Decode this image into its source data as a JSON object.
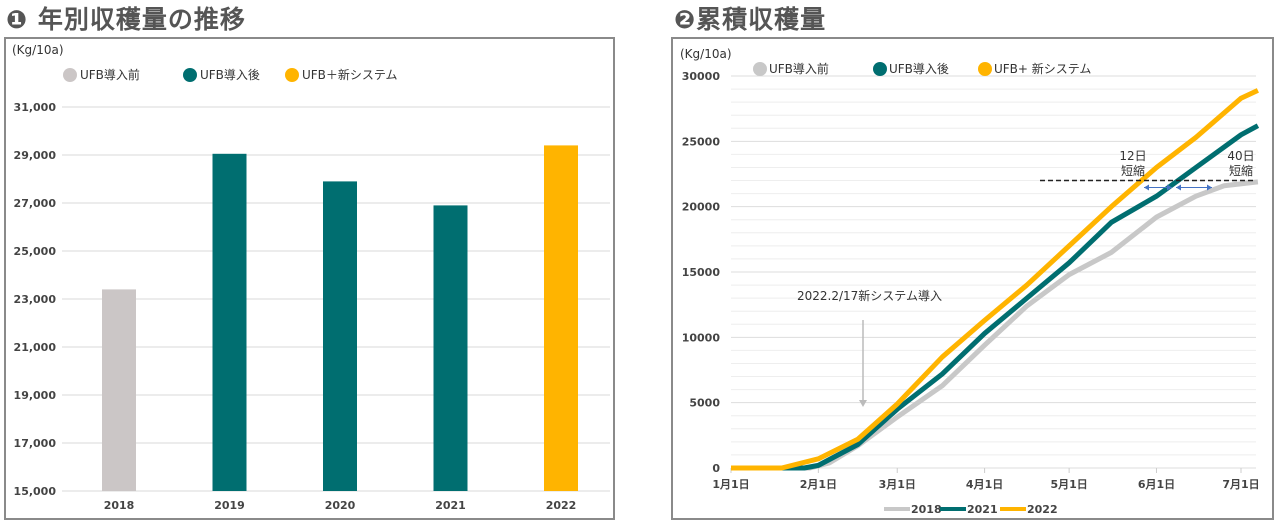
{
  "titles": {
    "left": "❶ 年別収穫量の推移",
    "right": "❷累積収穫量"
  },
  "colors": {
    "pre": "#cbc6c6",
    "post": "#006e70",
    "new": "#ffb400",
    "line2018": "#c8c8c8",
    "grid": "#d9d9d9",
    "arrow": "#4472c4"
  },
  "chart_data": [
    {
      "type": "bar",
      "unit_label": "(Kg/10a)",
      "legend": [
        {
          "label": "UFB導入前",
          "color": "#cbc6c6"
        },
        {
          "label": "UFB導入後",
          "color": "#006e70"
        },
        {
          "label": "UFB＋新システム",
          "color": "#ffb400"
        }
      ],
      "legend_position": "top",
      "categories": [
        "2018",
        "2019",
        "2020",
        "2021",
        "2022"
      ],
      "values": [
        23400,
        29050,
        27900,
        26900,
        29400
      ],
      "bar_colors": [
        "#cbc6c6",
        "#006e70",
        "#006e70",
        "#006e70",
        "#ffb400"
      ],
      "ylim": [
        15000,
        31000
      ],
      "yticks": [
        "15,000",
        "17,000",
        "19,000",
        "21,000",
        "23,000",
        "25,000",
        "27,000",
        "29,000",
        "31,000"
      ],
      "grid": true
    },
    {
      "type": "line",
      "unit_label": "(Kg/10a)",
      "legend_top": [
        {
          "label": "UFB導入前",
          "color": "#c8c8c8"
        },
        {
          "label": "UFB導入後",
          "color": "#006e70"
        },
        {
          "label": "UFB+ 新システム",
          "color": "#ffb400"
        }
      ],
      "legend_bottom": [
        "2018",
        "2021",
        "2022"
      ],
      "xticks": [
        "1月1日",
        "2月1日",
        "3月1日",
        "4月1日",
        "5月1日",
        "6月1日",
        "7月1日"
      ],
      "xtick_days": [
        0,
        31,
        59,
        90,
        120,
        151,
        181
      ],
      "xlim_days": [
        0,
        187
      ],
      "ylim": [
        0,
        30000
      ],
      "yticks": [
        "0",
        "5000",
        "10000",
        "15000",
        "20000",
        "25000",
        "30000"
      ],
      "grid": true,
      "series": [
        {
          "name": "2018",
          "color": "#c8c8c8",
          "points": [
            [
              0,
              0
            ],
            [
              28,
              0
            ],
            [
              35,
              400
            ],
            [
              45,
              1700
            ],
            [
              59,
              3900
            ],
            [
              75,
              6300
            ],
            [
              90,
              9400
            ],
            [
              105,
              12400
            ],
            [
              120,
              14800
            ],
            [
              135,
              16500
            ],
            [
              151,
              19200
            ],
            [
              165,
              20800
            ],
            [
              175,
              21600
            ],
            [
              187,
              21900
            ]
          ]
        },
        {
          "name": "2021",
          "color": "#006e70",
          "points": [
            [
              0,
              0
            ],
            [
              26,
              0
            ],
            [
              31,
              200
            ],
            [
              45,
              1800
            ],
            [
              59,
              4500
            ],
            [
              75,
              7200
            ],
            [
              90,
              10300
            ],
            [
              105,
              13000
            ],
            [
              120,
              15700
            ],
            [
              135,
              18800
            ],
            [
              151,
              20800
            ],
            [
              165,
              23000
            ],
            [
              181,
              25500
            ],
            [
              187,
              26200
            ]
          ]
        },
        {
          "name": "2022",
          "color": "#ffb400",
          "points": [
            [
              0,
              0
            ],
            [
              18,
              0
            ],
            [
              31,
              700
            ],
            [
              45,
              2200
            ],
            [
              59,
              4900
            ],
            [
              75,
              8500
            ],
            [
              90,
              11300
            ],
            [
              105,
              14000
            ],
            [
              120,
              17000
            ],
            [
              135,
              20000
            ],
            [
              151,
              23000
            ],
            [
              165,
              25300
            ],
            [
              181,
              28300
            ],
            [
              187,
              28900
            ]
          ]
        }
      ],
      "annotations": {
        "intro": "2022.2/17新システム導入",
        "target_value": 22000,
        "short12": [
          "12日",
          "短縮"
        ],
        "short40": [
          "40日",
          "短縮"
        ]
      }
    }
  ]
}
